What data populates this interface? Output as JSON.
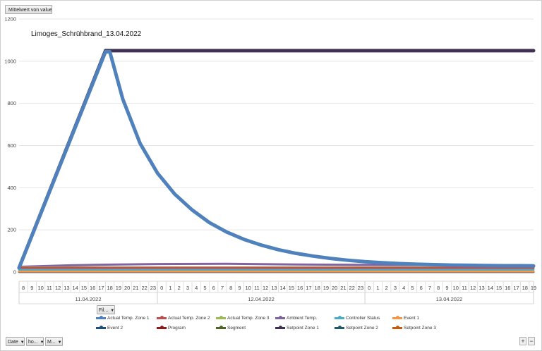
{
  "buttons": {
    "value_field": "Mittelwert von value",
    "filter": "Fil...",
    "date": "Date",
    "hour": "ho...",
    "minute": "M...",
    "zoom_in": "+",
    "zoom_out": "−"
  },
  "chart_data": {
    "type": "line",
    "title": "Limoges_Schrühbrand_13.04.2022",
    "xlabel": "",
    "ylabel": "",
    "ylim": [
      0,
      1200
    ],
    "yticks": [
      0,
      200,
      400,
      600,
      800,
      1000,
      1200
    ],
    "grid": true,
    "legend_position": "bottom",
    "date_labels": [
      "11.04.2022",
      "12.04.2022",
      "13.04.2022"
    ],
    "hour_labels": [
      [
        "8",
        "9",
        "10",
        "11",
        "12",
        "13",
        "14",
        "15",
        "16",
        "17",
        "18",
        "19",
        "20",
        "21",
        "22",
        "23"
      ],
      [
        "0",
        "1",
        "2",
        "3",
        "4",
        "5",
        "6",
        "7",
        "8",
        "9",
        "10",
        "11",
        "12",
        "13",
        "14",
        "15",
        "16",
        "17",
        "18",
        "19",
        "20",
        "21",
        "22",
        "23"
      ],
      [
        "0",
        "1",
        "2",
        "3",
        "4",
        "5",
        "6",
        "7",
        "8",
        "9",
        "10",
        "11",
        "12",
        "13",
        "14",
        "15",
        "16",
        "17",
        "18",
        "19"
      ]
    ],
    "x_axis": "hours from 11.04.2022 08:00",
    "series": [
      {
        "name": "Actual Temp. Zone 1",
        "color": "#4f81bd",
        "points": [
          [
            0,
            20
          ],
          [
            10,
            1045
          ],
          [
            10.5,
            1045
          ],
          [
            12,
            820
          ],
          [
            14,
            610
          ],
          [
            16,
            470
          ],
          [
            18,
            370
          ],
          [
            20,
            295
          ],
          [
            22,
            235
          ],
          [
            24,
            190
          ],
          [
            26,
            155
          ],
          [
            28,
            128
          ],
          [
            30,
            106
          ],
          [
            32,
            89
          ],
          [
            34,
            76
          ],
          [
            36,
            65
          ],
          [
            38,
            56
          ],
          [
            40,
            49
          ],
          [
            42,
            44
          ],
          [
            44,
            40
          ],
          [
            46,
            37
          ],
          [
            48,
            35
          ],
          [
            50,
            33
          ],
          [
            52,
            32
          ],
          [
            54,
            31
          ],
          [
            56,
            30
          ],
          [
            58,
            30
          ],
          [
            59.5,
            29
          ]
        ]
      },
      {
        "name": "Actual Temp. Zone 2",
        "color": "#c0504d",
        "points": [
          [
            0,
            20
          ],
          [
            59.5,
            20
          ]
        ]
      },
      {
        "name": "Actual Temp. Zone 3",
        "color": "#9bbb59",
        "points": [
          [
            0,
            22
          ],
          [
            59.5,
            22
          ]
        ]
      },
      {
        "name": "Ambient Temp.",
        "color": "#8064a2",
        "points": [
          [
            0,
            25
          ],
          [
            6,
            32
          ],
          [
            10,
            35
          ],
          [
            16,
            38
          ],
          [
            24,
            39
          ],
          [
            32,
            36
          ],
          [
            40,
            34
          ],
          [
            48,
            33
          ],
          [
            59.5,
            32
          ]
        ]
      },
      {
        "name": "Controller Status",
        "color": "#4bacc6",
        "points": [
          [
            0,
            12
          ],
          [
            59.5,
            12
          ]
        ]
      },
      {
        "name": "Event 1",
        "color": "#f79646",
        "points": [
          [
            0,
            3
          ],
          [
            59.5,
            3
          ]
        ]
      },
      {
        "name": "Event 2",
        "color": "#1f4e79",
        "points": [
          [
            0,
            1
          ],
          [
            59.5,
            1
          ]
        ]
      },
      {
        "name": "Program",
        "color": "#8b1a1a",
        "points": [
          [
            0,
            2
          ],
          [
            59.5,
            2
          ]
        ]
      },
      {
        "name": "Segment",
        "color": "#4f6228",
        "points": [
          [
            0,
            2
          ],
          [
            59.5,
            2
          ]
        ]
      },
      {
        "name": "Setpoint Zone 1",
        "color": "#3f3151",
        "points": [
          [
            0,
            20
          ],
          [
            10,
            1050
          ],
          [
            59.5,
            1050
          ]
        ]
      },
      {
        "name": "Setpoint Zone 2",
        "color": "#215967",
        "points": [
          [
            0,
            2
          ],
          [
            59.5,
            2
          ]
        ]
      },
      {
        "name": "Setpoint Zone 3",
        "color": "#c55a11",
        "points": [
          [
            0,
            1
          ],
          [
            59.5,
            1
          ]
        ]
      }
    ]
  }
}
